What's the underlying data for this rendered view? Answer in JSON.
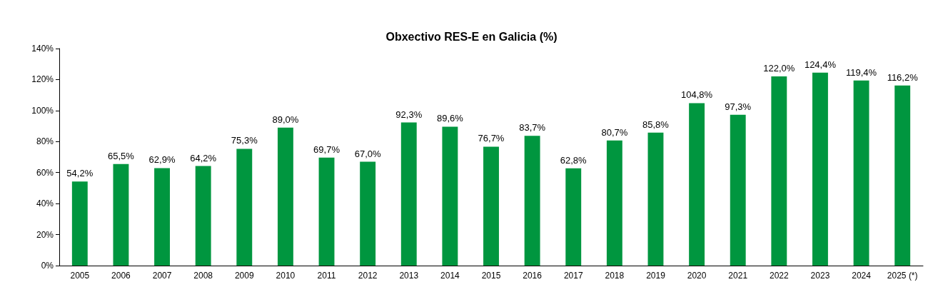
{
  "chart_data": {
    "type": "bar",
    "title": "Obxectivo RES-E en Galicia (%)",
    "categories": [
      "2005",
      "2006",
      "2007",
      "2008",
      "2009",
      "2010",
      "2011",
      "2012",
      "2013",
      "2014",
      "2015",
      "2016",
      "2017",
      "2018",
      "2019",
      "2020",
      "2021",
      "2022",
      "2023",
      "2024",
      "2025 (*)"
    ],
    "values": [
      54.2,
      65.5,
      62.9,
      64.2,
      75.3,
      89.0,
      69.7,
      67.0,
      92.3,
      89.6,
      76.7,
      83.7,
      62.8,
      80.7,
      85.8,
      104.8,
      97.3,
      122.0,
      124.4,
      119.4,
      116.2
    ],
    "value_labels": [
      "54,2%",
      "65,5%",
      "62,9%",
      "64,2%",
      "75,3%",
      "89,0%",
      "69,7%",
      "67,0%",
      "92,3%",
      "89,6%",
      "76,7%",
      "83,7%",
      "62,8%",
      "80,7%",
      "85,8%",
      "104,8%",
      "97,3%",
      "122,0%",
      "124,4%",
      "119,4%",
      "116,2%"
    ],
    "color": "#00963f",
    "ylim": [
      0,
      140
    ],
    "yticks": [
      {
        "value": 0,
        "label": "0%"
      },
      {
        "value": 20,
        "label": "20%"
      },
      {
        "value": 40,
        "label": "40%"
      },
      {
        "value": 60,
        "label": "60%"
      },
      {
        "value": 80,
        "label": "80%"
      },
      {
        "value": 100,
        "label": "100%"
      },
      {
        "value": 120,
        "label": "120%"
      },
      {
        "value": 140,
        "label": "140%"
      }
    ],
    "grid": false
  }
}
